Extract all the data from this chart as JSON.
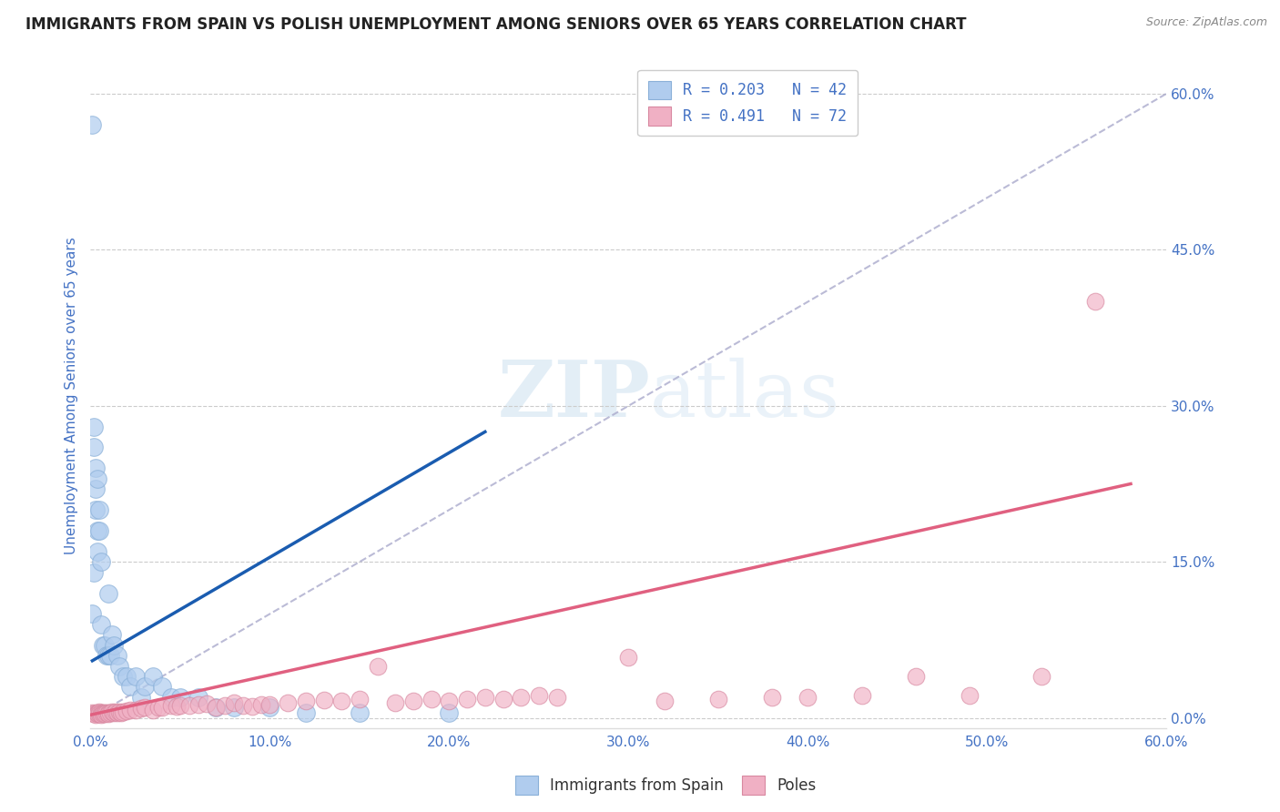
{
  "title": "IMMIGRANTS FROM SPAIN VS POLISH UNEMPLOYMENT AMONG SENIORS OVER 65 YEARS CORRELATION CHART",
  "source": "Source: ZipAtlas.com",
  "ylabel": "Unemployment Among Seniors over 65 years",
  "xlim": [
    0,
    0.6
  ],
  "ylim": [
    -0.01,
    0.63
  ],
  "xtick_labels": [
    "0.0%",
    "10.0%",
    "20.0%",
    "30.0%",
    "40.0%",
    "50.0%",
    "60.0%"
  ],
  "xtick_values": [
    0,
    0.1,
    0.2,
    0.3,
    0.4,
    0.5,
    0.6
  ],
  "ytick_labels_right": [
    "0.0%",
    "15.0%",
    "30.0%",
    "45.0%",
    "60.0%"
  ],
  "ytick_values_right": [
    0,
    0.15,
    0.3,
    0.45,
    0.6
  ],
  "legend_entries": [
    {
      "label": "R = 0.203   N = 42",
      "color": "#b8d4f0"
    },
    {
      "label": "R = 0.491   N = 72",
      "color": "#f0b8c8"
    }
  ],
  "watermark_zip": "ZIP",
  "watermark_atlas": "atlas",
  "title_color": "#222222",
  "source_color": "#888888",
  "axis_label_color": "#4472C4",
  "tick_color": "#4472C4",
  "grid_color": "#cccccc",
  "blue_scatter_color": "#b0ccee",
  "pink_scatter_color": "#f0b0c4",
  "blue_line_color": "#1a5cb0",
  "pink_line_color": "#e06080",
  "diag_line_color": "#aaaacc",
  "blue_points_x": [
    0.001,
    0.001,
    0.002,
    0.002,
    0.002,
    0.003,
    0.003,
    0.003,
    0.004,
    0.004,
    0.004,
    0.005,
    0.005,
    0.006,
    0.006,
    0.007,
    0.008,
    0.009,
    0.01,
    0.01,
    0.011,
    0.012,
    0.013,
    0.015,
    0.016,
    0.018,
    0.02,
    0.022,
    0.025,
    0.028,
    0.03,
    0.035,
    0.04,
    0.045,
    0.05,
    0.06,
    0.07,
    0.08,
    0.1,
    0.12,
    0.15,
    0.2
  ],
  "blue_points_y": [
    0.57,
    0.1,
    0.28,
    0.26,
    0.14,
    0.24,
    0.22,
    0.2,
    0.18,
    0.23,
    0.16,
    0.2,
    0.18,
    0.15,
    0.09,
    0.07,
    0.07,
    0.06,
    0.12,
    0.06,
    0.06,
    0.08,
    0.07,
    0.06,
    0.05,
    0.04,
    0.04,
    0.03,
    0.04,
    0.02,
    0.03,
    0.04,
    0.03,
    0.02,
    0.02,
    0.02,
    0.01,
    0.01,
    0.01,
    0.005,
    0.005,
    0.005
  ],
  "pink_points_x": [
    0.001,
    0.002,
    0.003,
    0.003,
    0.004,
    0.004,
    0.005,
    0.005,
    0.006,
    0.006,
    0.007,
    0.007,
    0.008,
    0.008,
    0.009,
    0.01,
    0.01,
    0.011,
    0.012,
    0.013,
    0.014,
    0.015,
    0.016,
    0.017,
    0.018,
    0.02,
    0.022,
    0.025,
    0.028,
    0.03,
    0.035,
    0.038,
    0.04,
    0.045,
    0.048,
    0.05,
    0.055,
    0.06,
    0.065,
    0.07,
    0.075,
    0.08,
    0.085,
    0.09,
    0.095,
    0.1,
    0.11,
    0.12,
    0.13,
    0.14,
    0.15,
    0.16,
    0.17,
    0.18,
    0.19,
    0.2,
    0.21,
    0.22,
    0.23,
    0.24,
    0.25,
    0.26,
    0.3,
    0.32,
    0.35,
    0.38,
    0.4,
    0.43,
    0.46,
    0.49,
    0.53,
    0.56
  ],
  "pink_points_y": [
    0.005,
    0.004,
    0.005,
    0.003,
    0.005,
    0.004,
    0.006,
    0.004,
    0.005,
    0.003,
    0.005,
    0.004,
    0.005,
    0.004,
    0.005,
    0.005,
    0.004,
    0.005,
    0.006,
    0.005,
    0.006,
    0.005,
    0.006,
    0.005,
    0.006,
    0.007,
    0.008,
    0.008,
    0.009,
    0.01,
    0.008,
    0.01,
    0.01,
    0.012,
    0.011,
    0.012,
    0.012,
    0.013,
    0.014,
    0.01,
    0.012,
    0.015,
    0.012,
    0.011,
    0.013,
    0.013,
    0.015,
    0.016,
    0.017,
    0.016,
    0.018,
    0.05,
    0.015,
    0.016,
    0.018,
    0.016,
    0.018,
    0.02,
    0.018,
    0.02,
    0.022,
    0.02,
    0.058,
    0.016,
    0.018,
    0.02,
    0.02,
    0.022,
    0.04,
    0.022,
    0.04,
    0.4
  ],
  "blue_line_x": [
    0.001,
    0.22
  ],
  "blue_line_y": [
    0.055,
    0.275
  ],
  "pink_line_x": [
    0.0,
    0.58
  ],
  "pink_line_y": [
    0.003,
    0.225
  ],
  "bg_color": "#ffffff"
}
